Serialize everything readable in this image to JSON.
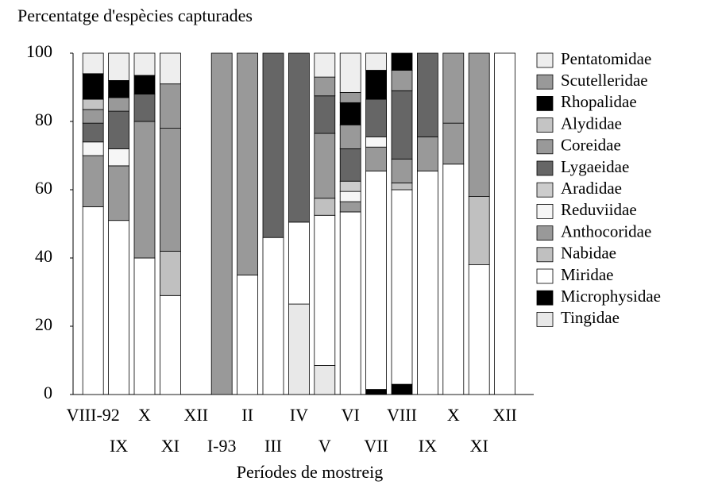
{
  "chart_data": {
    "type": "stacked_bar",
    "y_label": "Percentatge d'espècies capturades",
    "x_label": "Períodes de mostreig",
    "categories": [
      "VIII-92",
      "IX",
      "X",
      "XI",
      "XII",
      "I-93",
      "II",
      "III",
      "IV",
      "V",
      "VI",
      "VII",
      "VIII",
      "IX",
      "X",
      "XI",
      "XII"
    ],
    "ylim": [
      0,
      100
    ],
    "yticks": [
      0,
      20,
      40,
      60,
      80,
      100
    ],
    "series": [
      {
        "name": "Tingidae",
        "color": "#e8e8e8",
        "values": [
          null,
          null,
          null,
          null,
          null,
          null,
          null,
          null,
          26.5,
          8.5,
          null,
          null,
          null,
          null,
          null,
          null,
          null
        ]
      },
      {
        "name": "Microphysidae",
        "color": "#000000",
        "values": [
          null,
          null,
          null,
          null,
          null,
          null,
          null,
          null,
          null,
          null,
          null,
          1.5,
          3,
          null,
          null,
          null,
          null
        ]
      },
      {
        "name": "Miridae",
        "color": "#ffffff",
        "values": [
          55,
          51,
          40,
          29,
          null,
          null,
          35,
          46,
          24,
          44,
          53.5,
          64,
          57,
          65.5,
          67.5,
          38,
          100
        ]
      },
      {
        "name": "Nabidae",
        "color": "#c0c0c0",
        "values": [
          null,
          null,
          null,
          13,
          null,
          null,
          null,
          null,
          null,
          5,
          null,
          null,
          2,
          null,
          null,
          20,
          null
        ]
      },
      {
        "name": "Anthocoridae",
        "color": "#999999",
        "values": [
          15,
          16,
          40,
          36,
          null,
          100,
          65,
          null,
          null,
          19,
          3,
          7,
          7,
          10,
          12,
          42,
          null
        ]
      },
      {
        "name": "Reduviidae",
        "color": "#f6f6f6",
        "values": [
          4,
          5,
          null,
          null,
          null,
          null,
          null,
          null,
          null,
          null,
          3,
          3,
          null,
          null,
          null,
          null,
          null
        ]
      },
      {
        "name": "Aradidae",
        "color": "#cccccc",
        "values": [
          null,
          null,
          null,
          null,
          null,
          null,
          null,
          null,
          null,
          null,
          3,
          null,
          null,
          null,
          null,
          null,
          null
        ]
      },
      {
        "name": "Lygaeidae",
        "color": "#666666",
        "values": [
          5.5,
          11,
          8,
          null,
          null,
          null,
          null,
          54,
          49.5,
          11,
          9.5,
          11,
          20,
          24.5,
          null,
          null,
          null
        ]
      },
      {
        "name": "Coreidae",
        "color": "#999999",
        "values": [
          4,
          4,
          null,
          13,
          null,
          null,
          null,
          null,
          null,
          null,
          7,
          null,
          6,
          null,
          20.5,
          null,
          null
        ]
      },
      {
        "name": "Alydidae",
        "color": "#c4c4c4",
        "values": [
          3,
          null,
          null,
          null,
          null,
          null,
          null,
          null,
          null,
          null,
          null,
          null,
          null,
          null,
          null,
          null,
          null
        ]
      },
      {
        "name": "Rhopalidae",
        "color": "#000000",
        "values": [
          7.5,
          5,
          5.5,
          null,
          null,
          null,
          null,
          null,
          null,
          null,
          6.5,
          8.5,
          5,
          null,
          null,
          null,
          null
        ]
      },
      {
        "name": "Scutelleridae",
        "color": "#999999",
        "values": [
          null,
          null,
          null,
          null,
          null,
          null,
          null,
          null,
          null,
          5.5,
          3,
          null,
          null,
          null,
          null,
          null,
          null
        ]
      },
      {
        "name": "Pentatomidae",
        "color": "#eeeeee",
        "values": [
          6,
          8,
          6.5,
          9,
          null,
          null,
          null,
          null,
          null,
          7,
          11.5,
          5,
          null,
          null,
          null,
          null,
          null
        ]
      }
    ]
  }
}
